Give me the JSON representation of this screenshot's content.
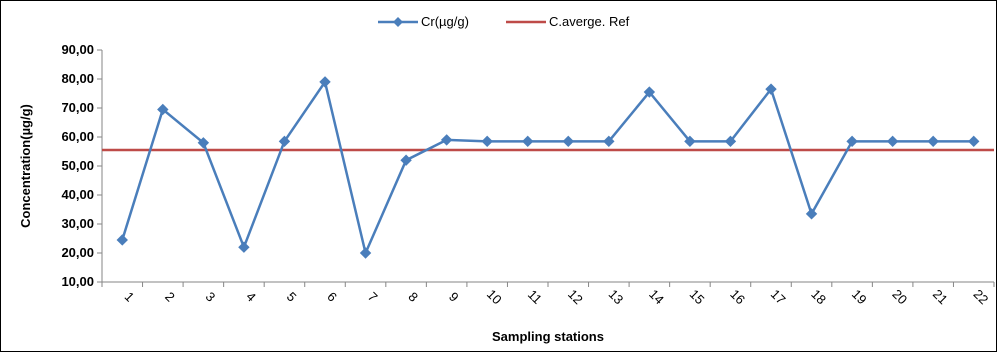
{
  "chart_data": {
    "type": "line",
    "xlabel": "Sampling stations",
    "ylabel": "Concentration(µg/g)",
    "ylim": [
      10,
      90
    ],
    "y_ticks": [
      "10,00",
      "20,00",
      "30,00",
      "40,00",
      "50,00",
      "60,00",
      "70,00",
      "80,00",
      "90,00"
    ],
    "categories": [
      "1",
      "2",
      "3",
      "4",
      "5",
      "6",
      "7",
      "8",
      "9",
      "10",
      "11",
      "12",
      "13",
      "14",
      "15",
      "16",
      "17",
      "18",
      "19",
      "20",
      "21",
      "22"
    ],
    "grid": false,
    "legend_position": "top-center",
    "series": [
      {
        "name": "Cr(µg/g)",
        "color": "#4a7ebb",
        "marker": "diamond",
        "values": [
          24.5,
          69.5,
          58,
          22,
          58.5,
          79,
          20,
          52,
          59,
          58.5,
          58.5,
          58.5,
          58.5,
          75.5,
          58.5,
          58.5,
          76.5,
          33.5,
          58.5,
          58.5,
          58.5,
          58.5
        ]
      },
      {
        "name": "C.averge. Ref",
        "color": "#be4b48",
        "marker": "none",
        "values": [
          55.5,
          55.5,
          55.5,
          55.5,
          55.5,
          55.5,
          55.5,
          55.5,
          55.5,
          55.5,
          55.5,
          55.5,
          55.5,
          55.5,
          55.5,
          55.5,
          55.5,
          55.5,
          55.5,
          55.5,
          55.5,
          55.5
        ]
      }
    ]
  }
}
